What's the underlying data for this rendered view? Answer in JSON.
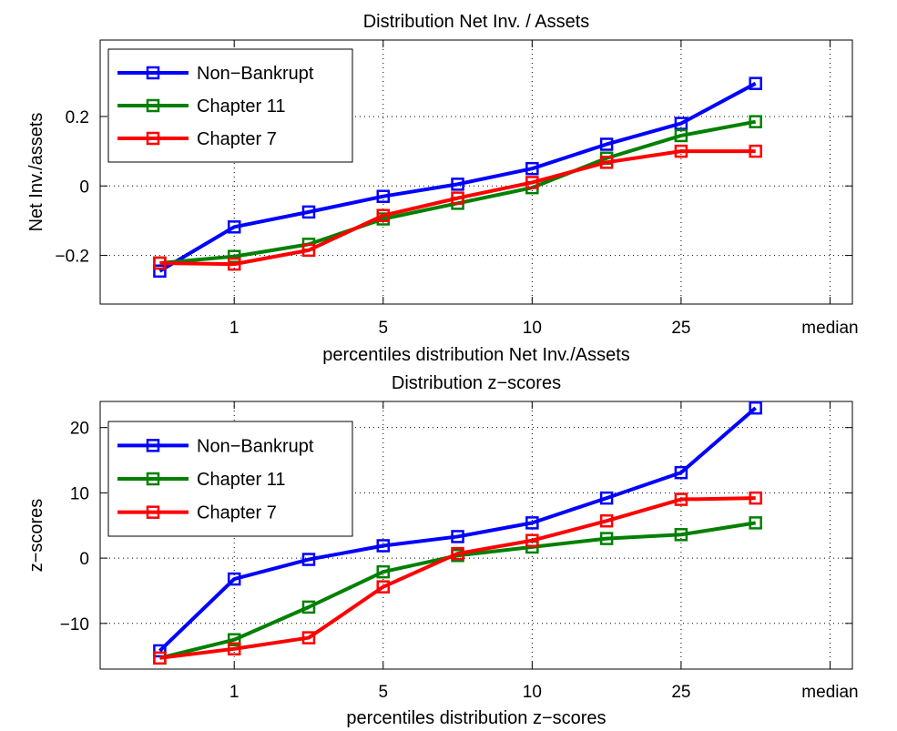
{
  "chart_data": [
    {
      "type": "line",
      "title": "Distribution Net Inv. / Assets",
      "xlabel": "percentiles distribution Net Inv./Assets",
      "ylabel": "Net Inv./assets",
      "x": [
        0,
        1,
        2,
        3,
        4,
        5,
        6,
        7,
        8
      ],
      "xticks": [
        {
          "x": 1,
          "label": "1"
        },
        {
          "x": 3,
          "label": "5"
        },
        {
          "x": 5,
          "label": "10"
        },
        {
          "x": 7,
          "label": "25"
        },
        {
          "x": 9,
          "label": "median"
        }
      ],
      "xlim": [
        -0.8,
        9.3
      ],
      "ylim": [
        -0.34,
        0.42
      ],
      "yticks": [
        {
          "y": -0.2,
          "label": "−0.2"
        },
        {
          "y": 0,
          "label": "0"
        },
        {
          "y": 0.2,
          "label": "0.2"
        }
      ],
      "grid": true,
      "legend_position": "top-left",
      "series": [
        {
          "name": "Non−Bankrupt",
          "color": "#0000ff",
          "values": [
            -0.245,
            -0.118,
            -0.075,
            -0.03,
            0.005,
            0.05,
            0.12,
            0.18,
            0.295
          ]
        },
        {
          "name": "Chapter 11",
          "color": "#008000",
          "values": [
            -0.222,
            -0.203,
            -0.168,
            -0.095,
            -0.05,
            -0.005,
            0.08,
            0.145,
            0.185
          ]
        },
        {
          "name": "Chapter 7",
          "color": "#ff0000",
          "values": [
            -0.222,
            -0.225,
            -0.185,
            -0.085,
            -0.035,
            0.01,
            0.068,
            0.1,
            0.1
          ]
        }
      ]
    },
    {
      "type": "line",
      "title": "Distribution z−scores",
      "xlabel": "percentiles distribution z−scores",
      "ylabel": "z−scores",
      "x": [
        0,
        1,
        2,
        3,
        4,
        5,
        6,
        7,
        8
      ],
      "xticks": [
        {
          "x": 1,
          "label": "1"
        },
        {
          "x": 3,
          "label": "5"
        },
        {
          "x": 5,
          "label": "10"
        },
        {
          "x": 7,
          "label": "25"
        },
        {
          "x": 9,
          "label": "median"
        }
      ],
      "xlim": [
        -0.8,
        9.3
      ],
      "ylim": [
        -17,
        24
      ],
      "yticks": [
        {
          "y": -10,
          "label": "−10"
        },
        {
          "y": 0,
          "label": "0"
        },
        {
          "y": 10,
          "label": "10"
        },
        {
          "y": 20,
          "label": "20"
        }
      ],
      "grid": true,
      "legend_position": "top-left",
      "series": [
        {
          "name": "Non−Bankrupt",
          "color": "#0000ff",
          "values": [
            -14.2,
            -3.2,
            -0.2,
            1.9,
            3.3,
            5.4,
            9.2,
            13.1,
            23.0
          ]
        },
        {
          "name": "Chapter 11",
          "color": "#008000",
          "values": [
            -15.3,
            -12.5,
            -7.5,
            -2.1,
            0.4,
            1.7,
            3.0,
            3.6,
            5.4
          ]
        },
        {
          "name": "Chapter 7",
          "color": "#ff0000",
          "values": [
            -15.3,
            -13.9,
            -12.2,
            -4.4,
            0.7,
            2.7,
            5.7,
            9.0,
            9.2
          ]
        }
      ]
    }
  ]
}
